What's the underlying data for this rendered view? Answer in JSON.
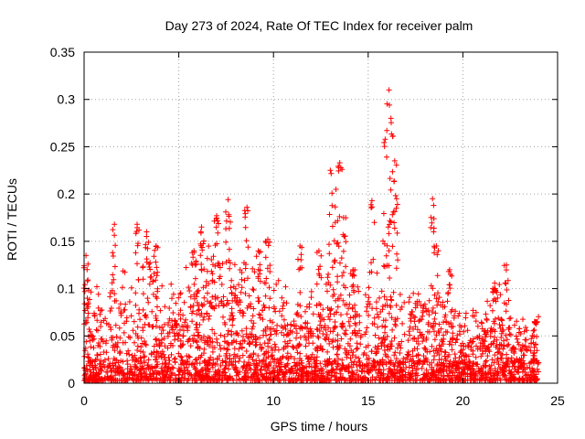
{
  "chart_data": {
    "type": "scatter",
    "title": "Day 273 of 2024, Rate Of TEC Index for receiver palm",
    "xlabel": "GPS time / hours",
    "ylabel": "ROTI / TECUs",
    "xlim": [
      0,
      25
    ],
    "ylim": [
      0,
      0.35
    ],
    "grid": true,
    "marker": "+",
    "color": "#ff0000",
    "x_ticks": [
      {
        "value": 0,
        "label": "0"
      },
      {
        "value": 5,
        "label": "5"
      },
      {
        "value": 10,
        "label": "10"
      },
      {
        "value": 15,
        "label": "15"
      },
      {
        "value": 20,
        "label": "20"
      },
      {
        "value": 25,
        "label": "25"
      }
    ],
    "y_ticks": [
      {
        "value": 0,
        "label": "0"
      },
      {
        "value": 0.05,
        "label": "0.05"
      },
      {
        "value": 0.1,
        "label": "0.1"
      },
      {
        "value": 0.15,
        "label": "0.15"
      },
      {
        "value": 0.2,
        "label": "0.2"
      },
      {
        "value": 0.25,
        "label": "0.25"
      },
      {
        "value": 0.3,
        "label": "0.3"
      },
      {
        "value": 0.35,
        "label": "0.35"
      }
    ],
    "series": [
      {
        "name": "ROTI",
        "color": "#ff0000",
        "envelope": {
          "hours": [
            0,
            0.5,
            1,
            1.5,
            2,
            2.5,
            3,
            3.5,
            4,
            4.5,
            5,
            5.5,
            6,
            6.5,
            7,
            7.5,
            8,
            8.5,
            9,
            9.5,
            10,
            10.5,
            11,
            11.5,
            12,
            12.5,
            13,
            13.5,
            14,
            14.5,
            15,
            15.5,
            16,
            16.5,
            17,
            17.5,
            18,
            18.5,
            19,
            19.5,
            20,
            20.5,
            21,
            21.5,
            22,
            22.5,
            23,
            23.5,
            24
          ],
          "typical_max": [
            0.1,
            0.09,
            0.08,
            0.1,
            0.11,
            0.1,
            0.12,
            0.11,
            0.1,
            0.09,
            0.1,
            0.11,
            0.12,
            0.13,
            0.14,
            0.13,
            0.14,
            0.12,
            0.11,
            0.1,
            0.11,
            0.1,
            0.09,
            0.08,
            0.09,
            0.1,
            0.11,
            0.12,
            0.1,
            0.09,
            0.1,
            0.11,
            0.12,
            0.1,
            0.08,
            0.09,
            0.1,
            0.09,
            0.08,
            0.08,
            0.07,
            0.07,
            0.08,
            0.09,
            0.1,
            0.07,
            0.06,
            0.07,
            0.06
          ]
        },
        "peaks": [
          {
            "x": 0.1,
            "y": 0.135
          },
          {
            "x": 1.6,
            "y": 0.168
          },
          {
            "x": 2.8,
            "y": 0.168
          },
          {
            "x": 3.3,
            "y": 0.16
          },
          {
            "x": 3.8,
            "y": 0.145
          },
          {
            "x": 5.8,
            "y": 0.14
          },
          {
            "x": 6.2,
            "y": 0.165
          },
          {
            "x": 7.0,
            "y": 0.177
          },
          {
            "x": 7.6,
            "y": 0.194
          },
          {
            "x": 8.6,
            "y": 0.186
          },
          {
            "x": 9.2,
            "y": 0.14
          },
          {
            "x": 9.7,
            "y": 0.152
          },
          {
            "x": 11.4,
            "y": 0.145
          },
          {
            "x": 12.4,
            "y": 0.14
          },
          {
            "x": 13.0,
            "y": 0.225
          },
          {
            "x": 13.3,
            "y": 0.205
          },
          {
            "x": 13.5,
            "y": 0.233
          },
          {
            "x": 13.7,
            "y": 0.175
          },
          {
            "x": 14.2,
            "y": 0.12
          },
          {
            "x": 15.2,
            "y": 0.193
          },
          {
            "x": 15.9,
            "y": 0.258
          },
          {
            "x": 16.1,
            "y": 0.31
          },
          {
            "x": 16.2,
            "y": 0.28
          },
          {
            "x": 16.4,
            "y": 0.235
          },
          {
            "x": 16.5,
            "y": 0.195
          },
          {
            "x": 18.4,
            "y": 0.195
          },
          {
            "x": 18.6,
            "y": 0.145
          },
          {
            "x": 19.3,
            "y": 0.12
          },
          {
            "x": 21.7,
            "y": 0.1
          },
          {
            "x": 22.3,
            "y": 0.125
          },
          {
            "x": 23.8,
            "y": 0.065
          }
        ]
      }
    ]
  }
}
